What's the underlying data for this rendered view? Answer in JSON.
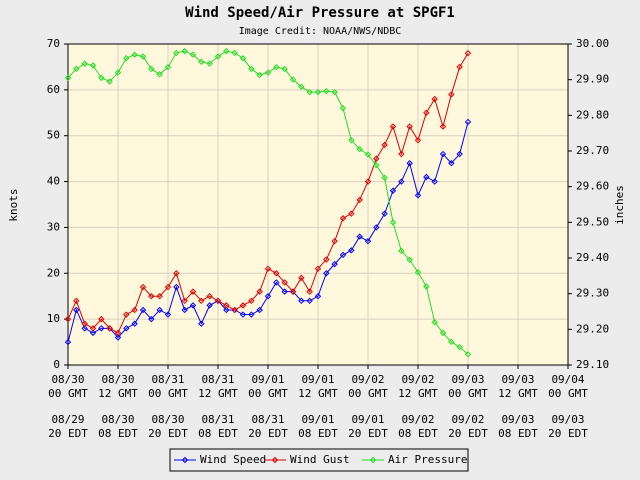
{
  "chart_data": {
    "type": "line",
    "title": "Wind Speed/Air Pressure at SPGF1",
    "subtitle": "Image Credit: NOAA/NWS/NDBC",
    "ylabel": "knots",
    "y2label": "inches",
    "grid": true,
    "legend": "bottom",
    "xlim": [
      "08/30 00:00",
      "09/04 00:00"
    ],
    "ylim": [
      0,
      70
    ],
    "yticks": [
      0,
      10,
      20,
      30,
      40,
      50,
      60,
      70
    ],
    "y2lim": [
      29.1,
      30.0
    ],
    "y2ticks": [
      {
        "value": 29.1,
        "label": "29.10"
      },
      {
        "value": 29.2,
        "label": "29.20"
      },
      {
        "value": 29.3,
        "label": "29.30"
      },
      {
        "value": 29.4,
        "label": "29.40"
      },
      {
        "value": 29.5,
        "label": "29.50"
      },
      {
        "value": 29.6,
        "label": "29.60"
      },
      {
        "value": 29.7,
        "label": "29.70"
      },
      {
        "value": 29.8,
        "label": "29.80"
      },
      {
        "value": 29.9,
        "label": "29.90"
      },
      {
        "value": 30.0,
        "label": "30.00"
      }
    ],
    "xticks": [
      {
        "value": "08/30 00:00",
        "label": [
          "08/30",
          "00 GMT"
        ]
      },
      {
        "value": "08/30 12:00",
        "label": [
          "08/30",
          "12 GMT"
        ]
      },
      {
        "value": "08/31 00:00",
        "label": [
          "08/31",
          "00 GMT"
        ]
      },
      {
        "value": "08/31 12:00",
        "label": [
          "08/31",
          "12 GMT"
        ]
      },
      {
        "value": "09/01 00:00",
        "label": [
          "09/01",
          "00 GMT"
        ]
      },
      {
        "value": "09/01 12:00",
        "label": [
          "09/01",
          "12 GMT"
        ]
      },
      {
        "value": "09/02 00:00",
        "label": [
          "09/02",
          "00 GMT"
        ]
      },
      {
        "value": "09/02 12:00",
        "label": [
          "09/02",
          "12 GMT"
        ]
      },
      {
        "value": "09/03 00:00",
        "label": [
          "09/03",
          "00 GMT"
        ]
      },
      {
        "value": "09/03 12:00",
        "label": [
          "09/03",
          "12 GMT"
        ]
      },
      {
        "value": "09/04 00:00",
        "label": [
          "09/04",
          "00 GMT"
        ]
      }
    ],
    "xticks_local": [
      [
        "08/29",
        "20 EDT"
      ],
      [
        "08/30",
        "08 EDT"
      ],
      [
        "08/30",
        "20 EDT"
      ],
      [
        "08/31",
        "08 EDT"
      ],
      [
        "08/31",
        "20 EDT"
      ],
      [
        "09/01",
        "08 EDT"
      ],
      [
        "09/01",
        "20 EDT"
      ],
      [
        "09/02",
        "08 EDT"
      ],
      [
        "09/02",
        "20 EDT"
      ],
      [
        "09/03",
        "08 EDT"
      ],
      [
        "09/03",
        "20 EDT"
      ]
    ],
    "x": [
      "08/30 00:00",
      "08/30 02:00",
      "08/30 04:00",
      "08/30 06:00",
      "08/30 08:00",
      "08/30 10:00",
      "08/30 12:00",
      "08/30 14:00",
      "08/30 16:00",
      "08/30 18:00",
      "08/30 20:00",
      "08/30 22:00",
      "08/31 00:00",
      "08/31 02:00",
      "08/31 04:00",
      "08/31 06:00",
      "08/31 08:00",
      "08/31 10:00",
      "08/31 12:00",
      "08/31 14:00",
      "08/31 16:00",
      "08/31 18:00",
      "08/31 20:00",
      "08/31 22:00",
      "09/01 00:00",
      "09/01 02:00",
      "09/01 04:00",
      "09/01 06:00",
      "09/01 08:00",
      "09/01 10:00",
      "09/01 12:00",
      "09/01 14:00",
      "09/01 16:00",
      "09/01 18:00",
      "09/01 20:00",
      "09/01 22:00",
      "09/02 00:00",
      "09/02 02:00",
      "09/02 04:00",
      "09/02 06:00",
      "09/02 08:00",
      "09/02 10:00",
      "09/02 12:00",
      "09/02 14:00",
      "09/02 16:00",
      "09/02 18:00",
      "09/02 20:00",
      "09/02 22:00",
      "09/03 00:00"
    ],
    "series": [
      {
        "name": "Wind Speed",
        "color": "#0000ff",
        "values": [
          5,
          12,
          8,
          7,
          8,
          8,
          6,
          8,
          9,
          12,
          10,
          12,
          11,
          17,
          12,
          13,
          9,
          13,
          14,
          12,
          12,
          11,
          11,
          12,
          15,
          18,
          16,
          16,
          14,
          14,
          15,
          20,
          22,
          24,
          25,
          28,
          27,
          30,
          33,
          38,
          40,
          44,
          37,
          41,
          40,
          46,
          44,
          46,
          53
        ]
      },
      {
        "name": "Wind Gust",
        "color": "#e00000",
        "values": [
          10,
          14,
          9,
          8,
          10,
          8,
          7,
          11,
          12,
          17,
          15,
          15,
          17,
          20,
          14,
          16,
          14,
          15,
          14,
          13,
          12,
          13,
          14,
          16,
          21,
          20,
          18,
          16,
          19,
          16,
          21,
          23,
          27,
          32,
          33,
          36,
          40,
          45,
          48,
          52,
          46,
          52,
          49,
          55,
          58,
          52,
          59,
          65,
          68
        ]
      },
      {
        "name": "Air Pressure",
        "color": "#22dd22",
        "axis": "y2",
        "values": [
          29.905,
          29.93,
          29.945,
          29.94,
          29.905,
          29.895,
          29.92,
          29.96,
          29.97,
          29.965,
          29.93,
          29.915,
          29.935,
          29.975,
          29.98,
          29.97,
          29.95,
          29.945,
          29.965,
          29.98,
          29.975,
          29.96,
          29.93,
          29.913,
          29.92,
          29.935,
          29.93,
          29.9,
          29.88,
          29.865,
          29.865,
          29.868,
          29.865,
          29.82,
          29.73,
          29.705,
          29.69,
          29.66,
          29.625,
          29.5,
          29.42,
          29.395,
          29.36,
          29.32,
          29.22,
          29.19,
          29.165,
          29.15,
          29.13
        ]
      }
    ]
  }
}
